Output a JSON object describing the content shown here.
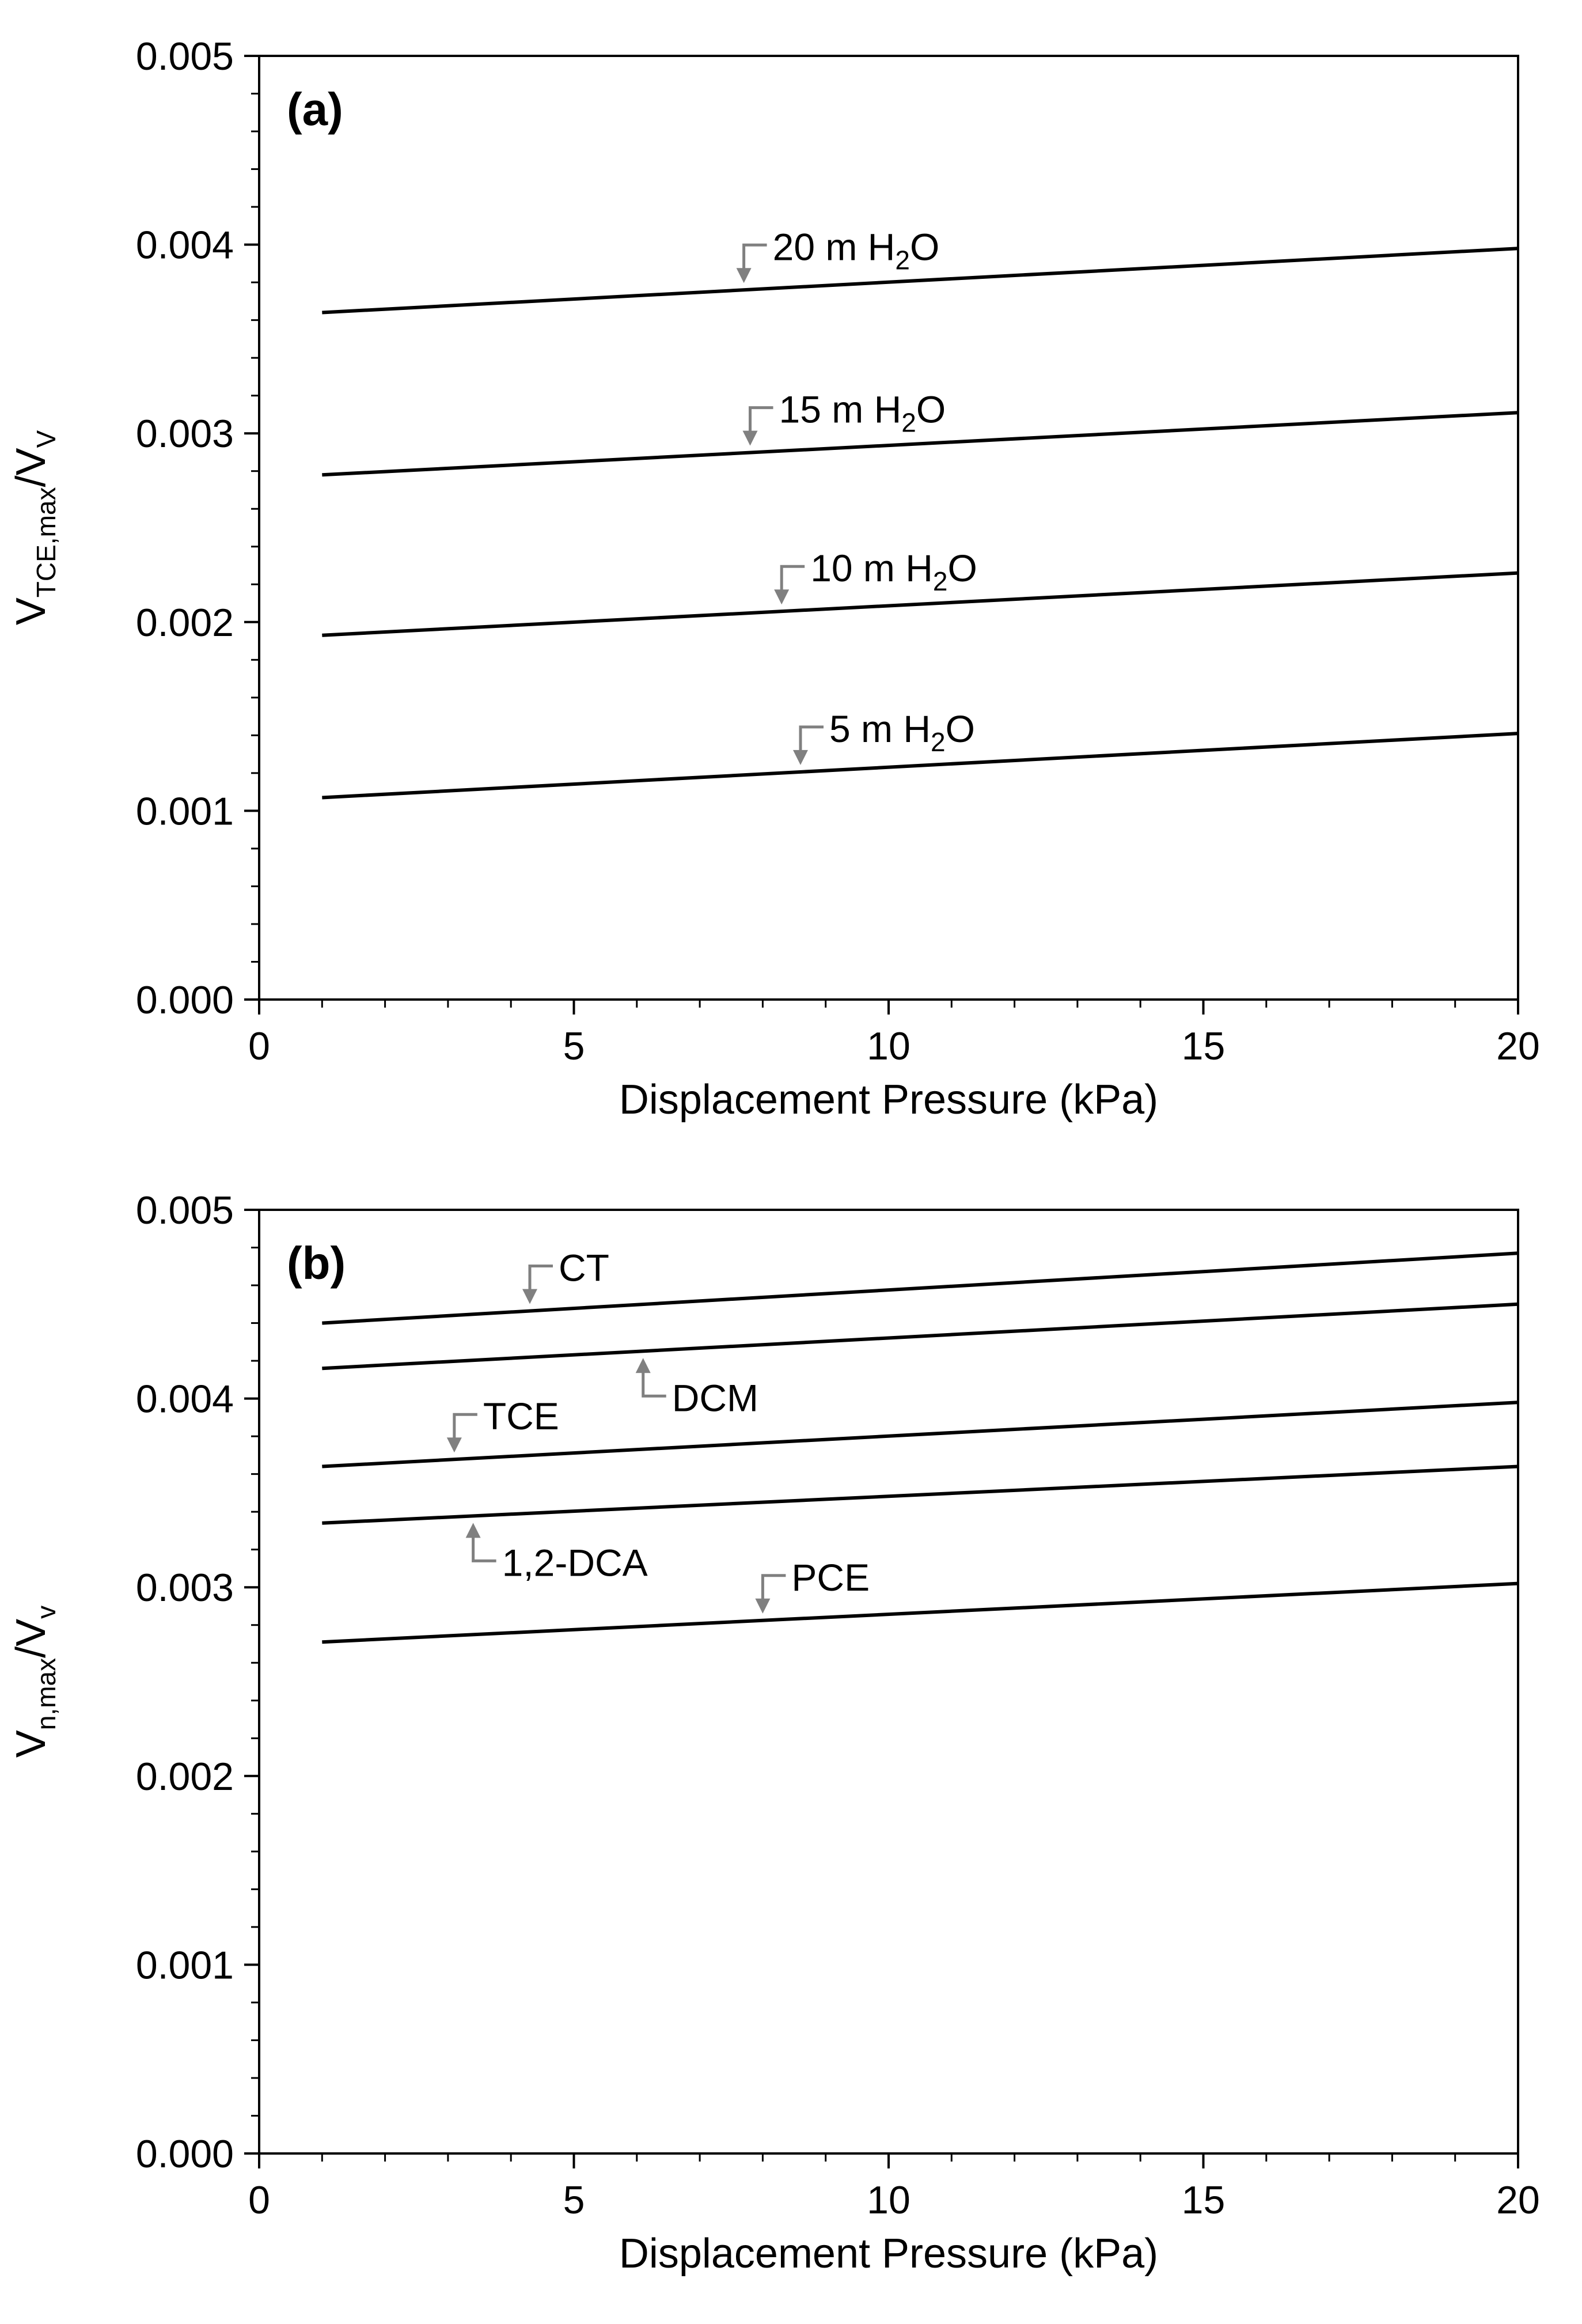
{
  "chart_data": [
    {
      "type": "line",
      "panel_label": "(a)",
      "xlabel": "Displacement Pressure (kPa)",
      "ylabel": {
        "main": "V",
        "sub": "TCE,max",
        "tail": "/V",
        "tail_sub": "V"
      },
      "xlim": [
        0,
        20
      ],
      "ylim": [
        0,
        0.005
      ],
      "x_ticks": [
        "0",
        "5",
        "10",
        "15",
        "20"
      ],
      "y_ticks": [
        "0.000",
        "0.001",
        "0.002",
        "0.003",
        "0.004",
        "0.005"
      ],
      "x_minor_step": 1,
      "y_minor_step": 0.0002,
      "grid": false,
      "series": [
        {
          "label": {
            "main": "20 m H",
            "sub": "2",
            "tail": "O"
          },
          "x": [
            1,
            20
          ],
          "y": [
            0.00364,
            0.00398
          ],
          "ann_at": 7.7
        },
        {
          "label": {
            "main": "15 m H",
            "sub": "2",
            "tail": "O"
          },
          "x": [
            1,
            20
          ],
          "y": [
            0.00278,
            0.00311
          ],
          "ann_at": 7.8
        },
        {
          "label": {
            "main": "10 m H",
            "sub": "2",
            "tail": "O"
          },
          "x": [
            1,
            20
          ],
          "y": [
            0.00193,
            0.00226
          ],
          "ann_at": 8.3
        },
        {
          "label": {
            "main": "5 m H",
            "sub": "2",
            "tail": "O"
          },
          "x": [
            1,
            20
          ],
          "y": [
            0.00107,
            0.00141
          ],
          "ann_at": 8.6
        }
      ]
    },
    {
      "type": "line",
      "panel_label": "(b)",
      "xlabel": "Displacement Pressure (kPa)",
      "ylabel": {
        "main": "V",
        "sub": "n,max",
        "tail": "/V",
        "tail_sub": "v"
      },
      "xlim": [
        0,
        20
      ],
      "ylim": [
        0,
        0.005
      ],
      "x_ticks": [
        "0",
        "5",
        "10",
        "15",
        "20"
      ],
      "y_ticks": [
        "0.000",
        "0.001",
        "0.002",
        "0.003",
        "0.004",
        "0.005"
      ],
      "x_minor_step": 1,
      "y_minor_step": 0.0002,
      "grid": false,
      "series": [
        {
          "label": {
            "main": "CT"
          },
          "x": [
            1,
            20
          ],
          "y": [
            0.0044,
            0.00477
          ],
          "ann_at": 4.3,
          "ann_side": "above"
        },
        {
          "label": {
            "main": "DCM"
          },
          "x": [
            1,
            20
          ],
          "y": [
            0.00416,
            0.0045
          ],
          "ann_at": 6.1,
          "ann_side": "below"
        },
        {
          "label": {
            "main": "TCE"
          },
          "x": [
            1,
            20
          ],
          "y": [
            0.00364,
            0.00398
          ],
          "ann_at": 3.1,
          "ann_side": "above"
        },
        {
          "label": {
            "main": "1,2-DCA"
          },
          "x": [
            1,
            20
          ],
          "y": [
            0.00334,
            0.00364
          ],
          "ann_at": 3.4,
          "ann_side": "below"
        },
        {
          "label": {
            "main": "PCE"
          },
          "x": [
            1,
            20
          ],
          "y": [
            0.00271,
            0.00302
          ],
          "ann_at": 8.0,
          "ann_side": "above"
        }
      ]
    }
  ]
}
